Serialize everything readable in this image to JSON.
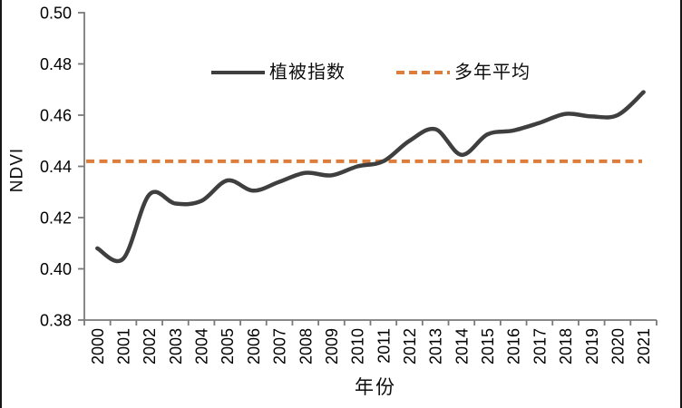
{
  "chart_data": {
    "type": "line",
    "x": [
      2000,
      2001,
      2002,
      2003,
      2004,
      2005,
      2006,
      2007,
      2008,
      2009,
      2010,
      2011,
      2012,
      2013,
      2014,
      2015,
      2016,
      2017,
      2018,
      2019,
      2020,
      2021
    ],
    "x_tick_labels": [
      "2000",
      "2001",
      "2002",
      "2003",
      "2004",
      "2005",
      "2006",
      "2007",
      "2008",
      "2009",
      "2010",
      "2011",
      "2012",
      "2013",
      "2014",
      "2015",
      "2016",
      "2017",
      "2018",
      "2019",
      "2020",
      "2021"
    ],
    "series": [
      {
        "name": "植被指数",
        "style": "solid",
        "color": "#3F3F3F",
        "values": [
          0.408,
          0.404,
          0.429,
          0.4255,
          0.4265,
          0.4345,
          0.4305,
          0.434,
          0.4375,
          0.4365,
          0.44,
          0.442,
          0.45,
          0.4545,
          0.4445,
          0.4525,
          0.454,
          0.457,
          0.4605,
          0.4595,
          0.46,
          0.469
        ]
      },
      {
        "name": "多年平均",
        "style": "dashed",
        "color": "#DD7D3C",
        "constant_value": 0.442
      }
    ],
    "xlabel": "年份",
    "ylabel": "NDVI",
    "ylim": [
      0.38,
      0.5
    ],
    "ytick_step": 0.02,
    "y_tick_labels": [
      "0.38",
      "0.40",
      "0.42",
      "0.44",
      "0.46",
      "0.48",
      "0.50"
    ],
    "grid": false,
    "legend_position": "top-center-inside",
    "axis_color": "#7a7a7a"
  }
}
